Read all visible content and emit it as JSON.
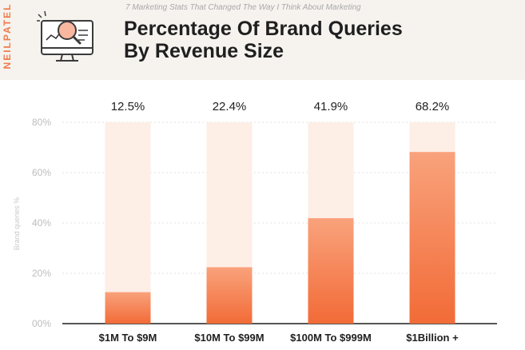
{
  "header": {
    "brand": "NEILPATEL",
    "subtitle": "7 Marketing Stats That Changed The Way I Think About Marketing",
    "title_line1": "Percentage Of Brand Queries",
    "title_line2": "By Revenue Size",
    "icon": "magnifier-on-monitor-icon"
  },
  "colors": {
    "accent": "#f07a4a",
    "bar_dark": "#f26b37",
    "bar_light": "#f9a27c",
    "track": "#fdeee6"
  },
  "chart_data": {
    "type": "bar",
    "title": "Percentage Of Brand Queries By Revenue Size",
    "xlabel": "",
    "ylabel": "Brand queries %",
    "categories": [
      "$1M To $9M",
      "$10M To $99M",
      "$100M To $999M",
      "$1Billion +"
    ],
    "values": [
      12.5,
      22.4,
      41.9,
      68.2
    ],
    "value_labels": [
      "12.5%",
      "22.4%",
      "41.9%",
      "68.2%"
    ],
    "yticks": [
      "00%",
      "20%",
      "40%",
      "60%",
      "80%"
    ],
    "ytick_values": [
      0,
      20,
      40,
      60,
      80
    ],
    "ylim": [
      0,
      80
    ],
    "grid": true,
    "legend": "none"
  }
}
